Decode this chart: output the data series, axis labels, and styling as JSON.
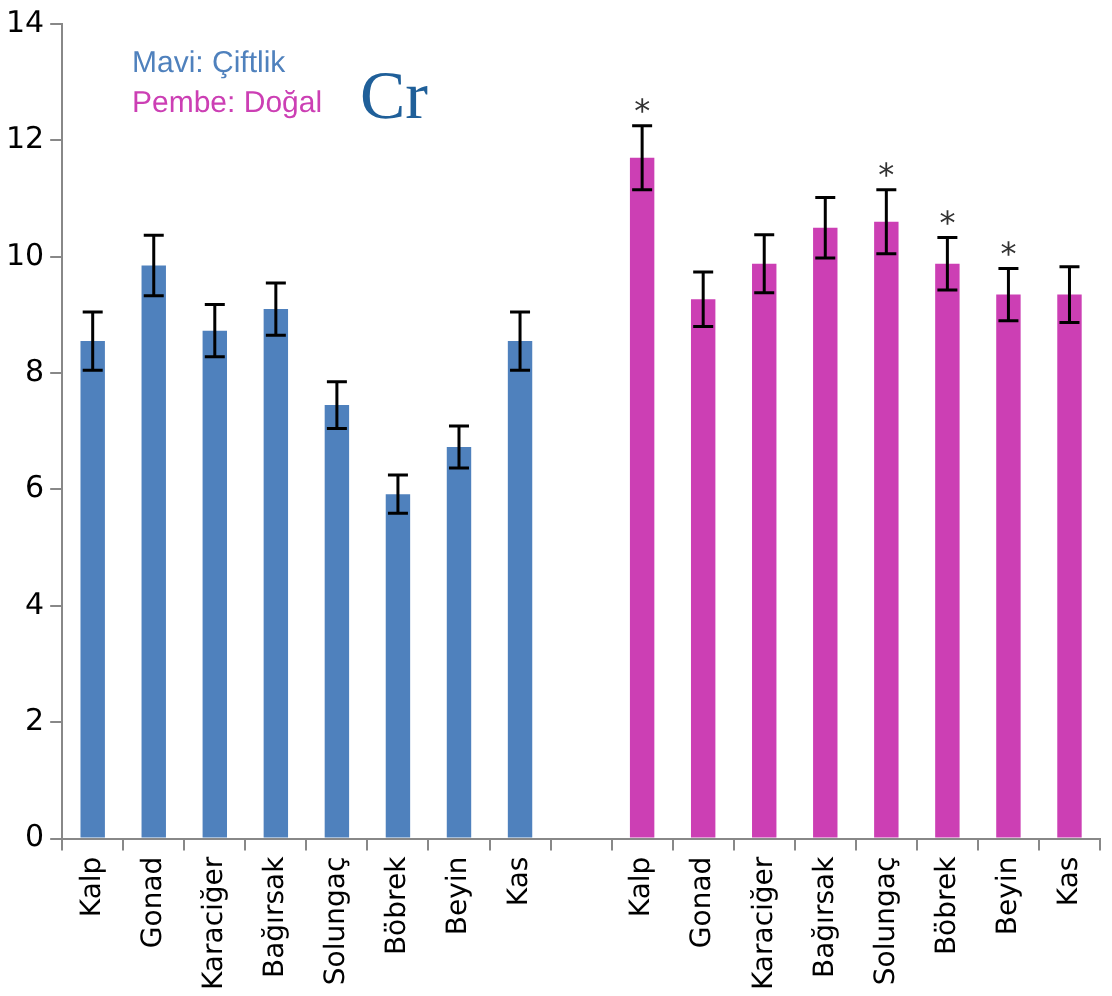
{
  "chart_data": {
    "type": "bar",
    "title": "Cr",
    "categories": [
      "Kalp",
      "Gonad",
      "Karaciğer",
      "Bağırsak",
      "Solungaç",
      "Böbrek",
      "Beyin",
      "Kas",
      null,
      "Kalp",
      "Gonad",
      "Karaciğer",
      "Bağırsak",
      "Solungaç",
      "Böbrek",
      "Beyin",
      "Kas"
    ],
    "series": [
      {
        "name": "Mavi: Çiftlik",
        "color": "#4f81bd",
        "values": [
          8.55,
          9.85,
          8.73,
          9.1,
          7.45,
          5.92,
          6.73,
          8.55,
          null,
          null,
          null,
          null,
          null,
          null,
          null,
          null,
          null
        ],
        "errors": [
          0.5,
          0.52,
          0.45,
          0.45,
          0.4,
          0.33,
          0.36,
          0.5,
          null,
          null,
          null,
          null,
          null,
          null,
          null,
          null,
          null
        ]
      },
      {
        "name": "Pembe: Doğal",
        "color": "#cc3fb4",
        "values": [
          null,
          null,
          null,
          null,
          null,
          null,
          null,
          null,
          null,
          11.7,
          9.27,
          9.88,
          10.5,
          10.6,
          9.88,
          9.35,
          9.35
        ],
        "errors": [
          null,
          null,
          null,
          null,
          null,
          null,
          null,
          null,
          null,
          0.55,
          0.47,
          0.5,
          0.52,
          0.55,
          0.45,
          0.45,
          0.48
        ],
        "value_labels": [
          null,
          null,
          null,
          null,
          null,
          null,
          null,
          null,
          null,
          "*",
          null,
          null,
          null,
          "*",
          "*",
          "*",
          null
        ]
      }
    ],
    "ylim": [
      0,
      14
    ],
    "yticks": [
      0,
      2,
      4,
      6,
      8,
      10,
      12,
      14
    ],
    "grid": false,
    "legend": "top left"
  }
}
